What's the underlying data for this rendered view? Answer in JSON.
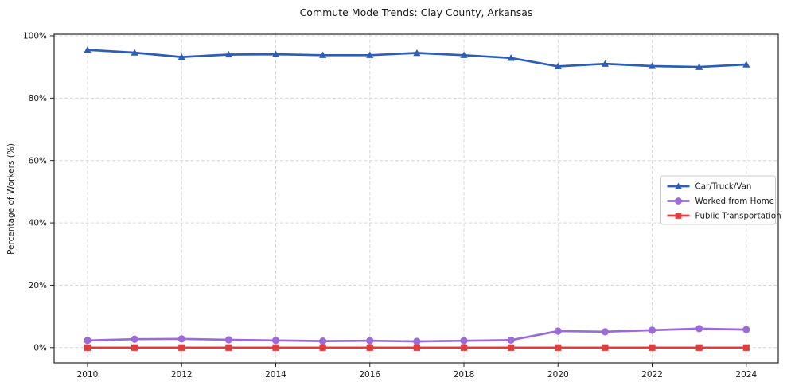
{
  "chart_data": {
    "type": "line",
    "title": "Commute Mode Trends: Clay County, Arkansas",
    "xlabel": "",
    "ylabel": "Percentage of Workers (%)",
    "x": [
      2010,
      2011,
      2012,
      2013,
      2014,
      2015,
      2016,
      2017,
      2018,
      2019,
      2020,
      2021,
      2022,
      2023,
      2024
    ],
    "series": [
      {
        "name": "Car/Truck/Van",
        "color": "#2c5eb9",
        "marker": "triangle",
        "values": [
          95.5,
          94.6,
          93.2,
          94.0,
          94.1,
          93.8,
          93.8,
          94.5,
          93.8,
          92.9,
          90.2,
          91.0,
          90.3,
          90.0,
          90.8
        ]
      },
      {
        "name": "Worked from Home",
        "color": "#9c6bd9",
        "marker": "circle",
        "values": [
          2.3,
          2.7,
          2.8,
          2.5,
          2.3,
          2.1,
          2.2,
          2.0,
          2.2,
          2.4,
          5.3,
          5.1,
          5.6,
          6.1,
          5.8
        ]
      },
      {
        "name": "Public Transportation",
        "color": "#e23d3d",
        "marker": "square",
        "values": [
          0.0,
          0.0,
          0.0,
          0.0,
          0.0,
          0.0,
          0.0,
          0.0,
          0.0,
          0.0,
          0.0,
          0.0,
          0.0,
          0.0,
          0.0
        ]
      }
    ],
    "x_ticks": [
      2010,
      2012,
      2014,
      2016,
      2018,
      2020,
      2022,
      2024
    ],
    "x_tick_labels": [
      "2010",
      "2012",
      "2014",
      "2016",
      "2018",
      "2020",
      "2022",
      "2024"
    ],
    "y_ticks": [
      0,
      20,
      40,
      60,
      80,
      100
    ],
    "y_tick_labels": [
      "0%",
      "20%",
      "40%",
      "60%",
      "80%",
      "100%"
    ],
    "xlim": [
      2009.29,
      2024.68
    ],
    "ylim": [
      -4.9,
      100.5
    ],
    "grid": true,
    "grid_color": "#d8d8d8",
    "spine_color": "#262626",
    "text_color": "#1a1a1a",
    "legend": {
      "position": "center-right",
      "border_color": "#cccccc",
      "background": "#ffffff"
    }
  }
}
